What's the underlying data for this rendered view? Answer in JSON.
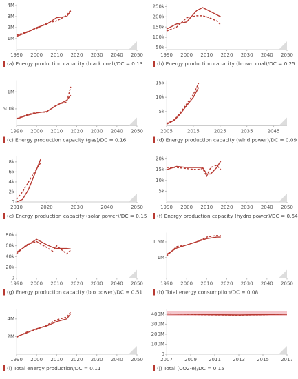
{
  "chart_data": [
    {
      "type": "line",
      "title": "(a) Energy production capacity (black coal)/DC = 0.13",
      "x": [
        1990,
        1995,
        2000,
        2005,
        2010,
        2015,
        2017
      ],
      "series": [
        {
          "color": "#b83a32",
          "style": "solid",
          "values": [
            1200000,
            1550000,
            2000000,
            2300000,
            2900000,
            3000000,
            3500000
          ]
        },
        {
          "color": "#b83a32",
          "style": "dashed",
          "values": [
            1300000,
            1600000,
            1900000,
            2400000,
            2600000,
            3100000,
            3600000
          ]
        }
      ],
      "xlim": [
        1990,
        2050
      ],
      "xticks": [
        1990,
        2000,
        2010,
        2020,
        2030,
        2040,
        2050
      ],
      "ylim": [
        0,
        4000000
      ],
      "yticks": [
        {
          "value": 1000000,
          "label": "1M"
        },
        {
          "value": 2000000,
          "label": "2M"
        },
        {
          "value": 3000000,
          "label": "3M"
        },
        {
          "value": 4000000,
          "label": "4M"
        }
      ]
    },
    {
      "type": "line",
      "title": "(b) Energy production capacity (brown coal)/DC = 0.25",
      "x": [
        1990,
        1995,
        2000,
        2005,
        2008,
        2010,
        2015,
        2017
      ],
      "series": [
        {
          "color": "#b83a32",
          "style": "solid",
          "values": [
            140000,
            165000,
            175000,
            230000,
            245000,
            235000,
            210000,
            200000
          ]
        },
        {
          "color": "#b83a32",
          "style": "dashed",
          "values": [
            130000,
            150000,
            195000,
            205000,
            205000,
            200000,
            180000,
            160000
          ]
        }
      ],
      "xlim": [
        1990,
        2050
      ],
      "xticks": [
        1990,
        2000,
        2010,
        2020,
        2030,
        2040,
        2050
      ],
      "ylim": [
        40000,
        255000
      ],
      "yticks": [
        {
          "value": 50000,
          "label": "50k"
        },
        {
          "value": 100000,
          "label": "100k"
        },
        {
          "value": 150000,
          "label": "150k"
        },
        {
          "value": 200000,
          "label": "200k"
        },
        {
          "value": 250000,
          "label": "250k"
        }
      ]
    },
    {
      "type": "line",
      "title": "(c) Energy production capacity (gas)/DC = 0.16",
      "x": [
        1990,
        1995,
        2000,
        2005,
        2010,
        2015,
        2017
      ],
      "series": [
        {
          "color": "#b83a32",
          "style": "solid",
          "values": [
            200000,
            300000,
            380000,
            420000,
            600000,
            750000,
            900000
          ]
        },
        {
          "color": "#b83a32",
          "style": "dashed",
          "values": [
            210000,
            320000,
            400000,
            400000,
            620000,
            700000,
            1150000
          ]
        }
      ],
      "xlim": [
        1990,
        2050
      ],
      "xticks": [
        1990,
        2000,
        2010,
        2020,
        2030,
        2040,
        2050
      ],
      "ylim": [
        0,
        1300000
      ],
      "yticks": [
        {
          "value": 500000,
          "label": "500k"
        },
        {
          "value": 1000000,
          "label": "1M"
        }
      ]
    },
    {
      "type": "line",
      "title": "(d) Energy production capacity (wind power)/DC = 0.09",
      "x": [
        2005,
        2008,
        2010,
        2012,
        2015,
        2017
      ],
      "series": [
        {
          "color": "#b83a32",
          "style": "solid",
          "values": [
            500,
            2000,
            4000,
            6500,
            10000,
            13500
          ]
        },
        {
          "color": "#b83a32",
          "style": "dashed",
          "values": [
            800,
            2200,
            4500,
            7000,
            11000,
            15000
          ]
        }
      ],
      "xlim": [
        2005,
        2050
      ],
      "xticks": [
        2005,
        2015,
        2025,
        2035,
        2045
      ],
      "ylim": [
        0,
        15500
      ],
      "yticks": [
        {
          "value": 5000,
          "label": "5k"
        },
        {
          "value": 10000,
          "label": "10k"
        },
        {
          "value": 15000,
          "label": "15k"
        }
      ]
    },
    {
      "type": "line",
      "title": "(e) Energy production capacity (solar power)/DC = 0.15",
      "x": [
        2010,
        2012,
        2014,
        2016,
        2018
      ],
      "series": [
        {
          "color": "#b83a32",
          "style": "solid",
          "values": [
            0,
            500,
            2500,
            5500,
            8500
          ]
        },
        {
          "color": "#b83a32",
          "style": "dashed",
          "values": [
            500,
            2000,
            4000,
            6000,
            7800
          ]
        }
      ],
      "xlim": [
        2010,
        2050
      ],
      "xticks": [
        2010,
        2020,
        2030,
        2040,
        2050
      ],
      "ylim": [
        0,
        8800
      ],
      "yticks": [
        0,
        {
          "value": 2000,
          "label": "2k"
        },
        {
          "value": 4000,
          "label": "4k"
        },
        {
          "value": 6000,
          "label": "6k"
        },
        {
          "value": 8000,
          "label": "8k"
        }
      ]
    },
    {
      "type": "line",
      "title": "(f) Energy production capacity (hydro power)/DC = 0.64",
      "x": [
        1990,
        1995,
        2000,
        2005,
        2008,
        2010,
        2012,
        2015,
        2017
      ],
      "series": [
        {
          "color": "#b83a32",
          "style": "solid",
          "values": [
            15000,
            16500,
            16000,
            16000,
            16000,
            13000,
            13000,
            16000,
            19000
          ]
        },
        {
          "color": "#b83a32",
          "style": "dashed",
          "values": [
            16000,
            16000,
            15500,
            15000,
            15500,
            12000,
            16000,
            17000,
            15000
          ]
        }
      ],
      "xlim": [
        1990,
        2050
      ],
      "xticks": [
        1990,
        2000,
        2010,
        2020,
        2030,
        2040,
        2050
      ],
      "ylim": [
        0,
        20500
      ],
      "yticks": [
        {
          "value": 5000,
          "label": "5k"
        },
        {
          "value": 10000,
          "label": "10k"
        },
        {
          "value": 15000,
          "label": "15k"
        },
        {
          "value": 20000,
          "label": "20k"
        }
      ]
    },
    {
      "type": "line",
      "title": "(g) Energy production capacity (bio power)/DC = 0.51",
      "x": [
        1990,
        1995,
        2000,
        2005,
        2008,
        2010,
        2015,
        2017
      ],
      "series": [
        {
          "color": "#b83a32",
          "style": "solid",
          "values": [
            48000,
            60000,
            72000,
            62000,
            57000,
            55000,
            55000,
            54000
          ]
        },
        {
          "color": "#b83a32",
          "style": "dashed",
          "values": [
            45000,
            62000,
            68000,
            57000,
            50000,
            60000,
            45000,
            52000
          ]
        }
      ],
      "xlim": [
        1990,
        2050
      ],
      "xticks": [
        1990,
        2000,
        2010,
        2020,
        2030,
        2040,
        2050
      ],
      "ylim": [
        0,
        82000
      ],
      "yticks": [
        0,
        {
          "value": 20000,
          "label": "20k"
        },
        {
          "value": 40000,
          "label": "40k"
        },
        {
          "value": 60000,
          "label": "60k"
        },
        {
          "value": 80000,
          "label": "80k"
        }
      ]
    },
    {
      "type": "line",
      "title": "(h) Total energy consumption/DC = 0.08",
      "x": [
        1990,
        1995,
        2000,
        2005,
        2010,
        2015,
        2017
      ],
      "series": [
        {
          "color": "#b83a32",
          "style": "solid",
          "values": [
            1100000,
            1300000,
            1400000,
            1500000,
            1600000,
            1650000,
            1650000
          ]
        },
        {
          "color": "#b83a32",
          "style": "dashed",
          "values": [
            1050000,
            1350000,
            1400000,
            1500000,
            1650000,
            1700000,
            1700000
          ]
        }
      ],
      "xlim": [
        1990,
        2050
      ],
      "xticks": [
        1990,
        2000,
        2010,
        2020,
        2030,
        2040,
        2050
      ],
      "ylim": [
        350000,
        1750000
      ],
      "yticks": [
        {
          "value": 1000000,
          "label": "1M"
        },
        {
          "value": 1500000,
          "label": "1.5M"
        }
      ]
    },
    {
      "type": "line",
      "title": "(i) Total energy production/DC = 0.11",
      "x": [
        1990,
        1995,
        2000,
        2005,
        2010,
        2015,
        2017
      ],
      "series": [
        {
          "color": "#b83a32",
          "style": "solid",
          "values": [
            2000000,
            2400000,
            2900000,
            3200000,
            3700000,
            4000000,
            4600000
          ]
        },
        {
          "color": "#b83a32",
          "style": "dashed",
          "values": [
            1900000,
            2500000,
            2800000,
            3300000,
            3900000,
            4200000,
            4800000
          ]
        }
      ],
      "xlim": [
        1990,
        2050
      ],
      "xticks": [
        1990,
        2000,
        2010,
        2020,
        2030,
        2040,
        2050
      ],
      "ylim": [
        0,
        5000000
      ],
      "yticks": [
        {
          "value": 2000000,
          "label": "2M"
        },
        {
          "value": 4000000,
          "label": "4M"
        }
      ]
    },
    {
      "type": "line",
      "title": "(j) Total (CO2-e)/DC = 0.15",
      "x": [
        2007,
        2009,
        2011,
        2013,
        2015,
        2017
      ],
      "series": [
        {
          "color": "#b83a32",
          "style": "solid",
          "values": [
            400000000,
            398000000,
            395000000,
            392000000,
            396000000,
            398000000
          ]
        },
        {
          "color": "#b83a32",
          "style": "dashed",
          "values": [
            402000000,
            397000000,
            393000000,
            390000000,
            395000000,
            400000000
          ]
        }
      ],
      "band": [
        385000000,
        432000000
      ],
      "band_color": "#f4c6cc",
      "xlim": [
        2007,
        2017
      ],
      "xticks": [
        2007,
        2009,
        2011,
        2013,
        2015,
        2017
      ],
      "ylim": [
        0,
        440000000
      ],
      "yticks": [
        0,
        {
          "value": 100000000,
          "label": "100M"
        },
        {
          "value": 200000000,
          "label": "200M"
        },
        {
          "value": 300000000,
          "label": "300M"
        },
        {
          "value": 400000000,
          "label": "400M"
        }
      ]
    }
  ]
}
